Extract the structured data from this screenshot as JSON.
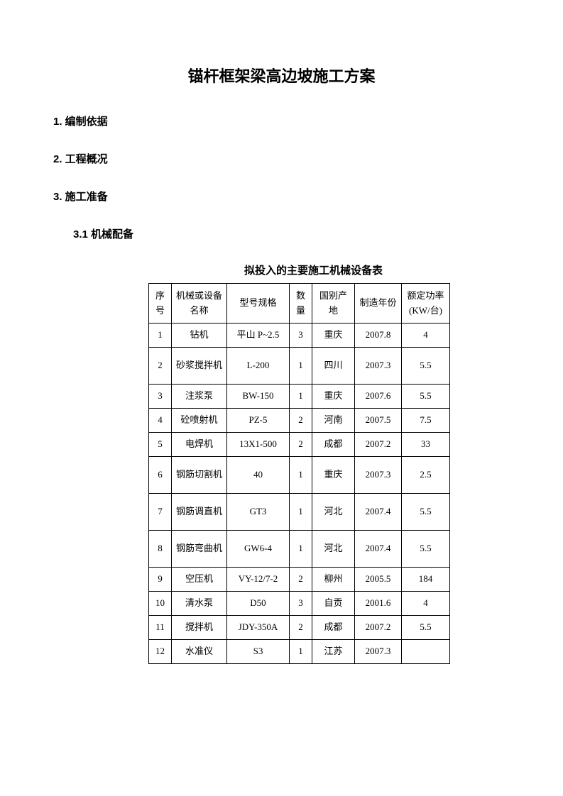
{
  "title": "锚杆框架梁高边坡施工方案",
  "sections": {
    "s1": "1. 编制依据",
    "s2": "2. 工程概况",
    "s3": "3. 施工准备",
    "s3_1": "3.1 机械配备"
  },
  "table": {
    "title": "拟投入的主要施工机械设备表",
    "headers": {
      "seq": "序号",
      "name": "机械或设备名称",
      "model": "型号规格",
      "qty": "数量",
      "origin": "国别产地",
      "year": "制造年份",
      "power": "额定功率(KW/台)"
    },
    "rows": [
      {
        "seq": "1",
        "name": "钻机",
        "model": "平山 P~2.5",
        "qty": "3",
        "origin": "重庆",
        "year": "2007.8",
        "power": "4",
        "tall": false
      },
      {
        "seq": "2",
        "name": "砂浆搅拌机",
        "model": "L-200",
        "qty": "1",
        "origin": "四川",
        "year": "2007.3",
        "power": "5.5",
        "tall": true
      },
      {
        "seq": "3",
        "name": "注浆泵",
        "model": "BW-150",
        "qty": "1",
        "origin": "重庆",
        "year": "2007.6",
        "power": "5.5",
        "tall": false
      },
      {
        "seq": "4",
        "name": "砼喷射机",
        "model": "PZ-5",
        "qty": "2",
        "origin": "河南",
        "year": "2007.5",
        "power": "7.5",
        "tall": false
      },
      {
        "seq": "5",
        "name": "电焊机",
        "model": "13X1-500",
        "qty": "2",
        "origin": "成都",
        "year": "2007.2",
        "power": "33",
        "tall": false
      },
      {
        "seq": "6",
        "name": "钢筋切割机",
        "model": "40",
        "qty": "1",
        "origin": "重庆",
        "year": "2007.3",
        "power": "2.5",
        "tall": true
      },
      {
        "seq": "7",
        "name": "钢筋调直机",
        "model": "GT3",
        "qty": "1",
        "origin": "河北",
        "year": "2007.4",
        "power": "5.5",
        "tall": true
      },
      {
        "seq": "8",
        "name": "钢筋弯曲机",
        "model": "GW6-4",
        "qty": "1",
        "origin": "河北",
        "year": "2007.4",
        "power": "5.5",
        "tall": true
      },
      {
        "seq": "9",
        "name": "空压机",
        "model": "VY-12/7-2",
        "qty": "2",
        "origin": "柳州",
        "year": "2005.5",
        "power": "184",
        "tall": false
      },
      {
        "seq": "10",
        "name": "清水泵",
        "model": "D50",
        "qty": "3",
        "origin": "自贡",
        "year": "2001.6",
        "power": "4",
        "tall": false
      },
      {
        "seq": "11",
        "name": "搅拌机",
        "model": "JDY-350A",
        "qty": "2",
        "origin": "成都",
        "year": "2007.2",
        "power": "5.5",
        "tall": false
      },
      {
        "seq": "12",
        "name": "水准仪",
        "model": "S3",
        "qty": "1",
        "origin": "江苏",
        "year": "2007.3",
        "power": "",
        "tall": false
      }
    ]
  }
}
